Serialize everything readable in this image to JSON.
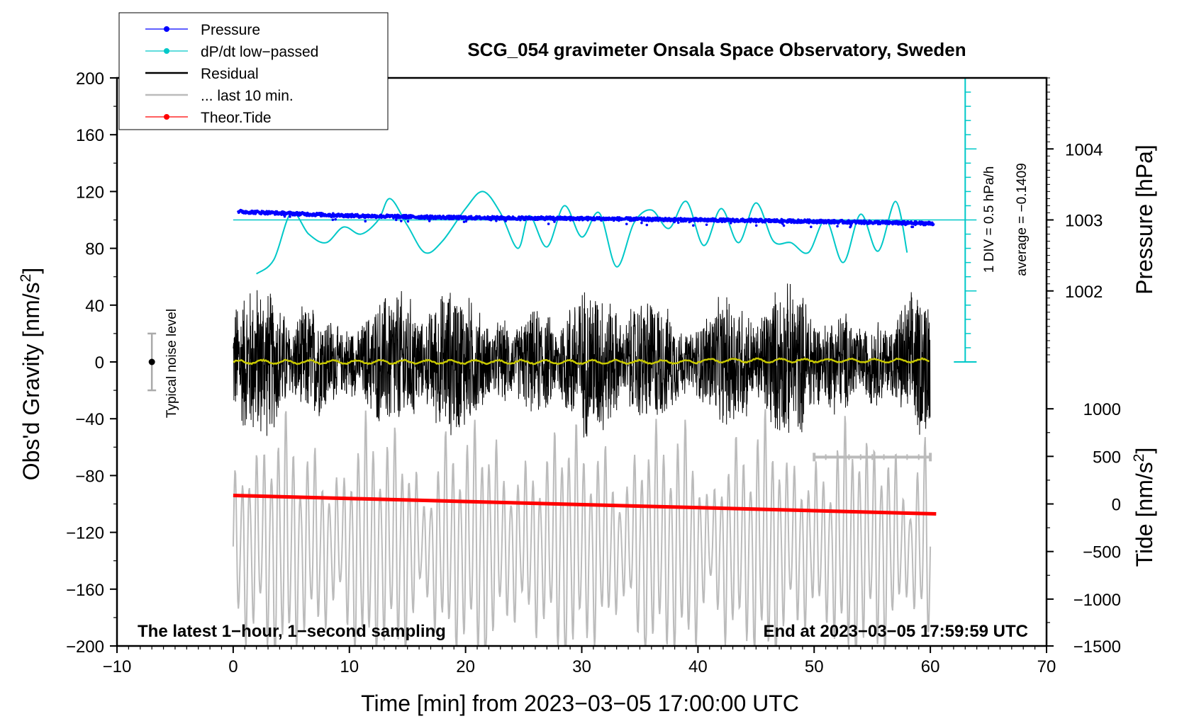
{
  "chart_data": {
    "type": "line",
    "title": "SCG_054 gravimeter Onsala Space Observatory, Sweden",
    "xlabel_prefix": "Time [min] from 2023",
    "xlabel_date_parts": [
      "03",
      "05"
    ],
    "xlabel_time": "17:00:00 UTC",
    "ylabel": "Obs'd Gravity [nm/s",
    "ylabel_unit_exp": "2",
    "ylabel_close": "]",
    "y2label_pressure": "Pressure [hPa]",
    "y2label_tide": "Tide [nm/s",
    "y2label_tide_exp": "2",
    "y2label_tide_close": "]",
    "xlim": [
      -10,
      70
    ],
    "ylim": [
      -200,
      200
    ],
    "x_ticks": [
      -10,
      0,
      10,
      20,
      30,
      40,
      50,
      60,
      70
    ],
    "x_tick_labels": [
      "−10",
      "0",
      "10",
      "20",
      "30",
      "40",
      "50",
      "60",
      "70"
    ],
    "y_ticks": [
      200,
      160,
      120,
      80,
      40,
      0,
      -40,
      -80,
      -120,
      -160,
      -200
    ],
    "y_tick_labels": [
      "200",
      "160",
      "120",
      "80",
      "40",
      "0",
      "−40",
      "−80",
      "−120",
      "−160",
      "−200"
    ],
    "pressure_axis": {
      "ticks": [
        1004,
        1003,
        1002
      ],
      "tick_labels": [
        "1004",
        "1003",
        "1002"
      ],
      "gravity_equiv": [
        150,
        100,
        50
      ]
    },
    "tide_axis": {
      "ticks": [
        1000,
        500,
        0,
        -500,
        -1000,
        -1500
      ],
      "tick_labels": [
        "1000",
        "500",
        "0",
        "−500",
        "−1000",
        "−1500"
      ],
      "gravity_equiv": [
        -33,
        -66.5,
        -100,
        -133.5,
        -167,
        -200
      ]
    },
    "legend": [
      {
        "label": "Pressure",
        "color": "#0000ff",
        "marker": true
      },
      {
        "label": "dP/dt low−passed",
        "color": "#00c8c8",
        "marker": true
      },
      {
        "label": "Residual",
        "color": "#000000",
        "marker": false
      },
      {
        "label": "... last 10 min.",
        "color": "#bbbbbb",
        "marker": false
      },
      {
        "label": "Theor.Tide",
        "color": "#ff0000",
        "marker": true
      }
    ],
    "series": [
      {
        "name": "Pressure",
        "x": [
          0,
          10,
          20,
          30,
          40,
          50,
          60
        ],
        "y_gravity": [
          106,
          103,
          101.5,
          101,
          100,
          99,
          97.5
        ]
      },
      {
        "name": "dP/dt low-passed",
        "x": [
          2,
          3.5,
          5,
          6.5,
          8,
          9.5,
          11,
          12.5,
          13.5,
          15,
          16.5,
          18,
          20,
          21.5,
          23,
          24.5,
          25.5,
          27,
          28.5,
          30,
          31.5,
          33,
          34.5,
          36,
          37.5,
          39,
          40.5,
          42,
          43.5,
          45,
          46.5,
          48,
          49.5,
          51,
          52.5,
          54,
          55.5,
          57,
          58
        ],
        "y": [
          62,
          72,
          105,
          90,
          84,
          95,
          90,
          100,
          115,
          96,
          77,
          85,
          108,
          120,
          105,
          80,
          103,
          81,
          110,
          88,
          105,
          67,
          98,
          107,
          94,
          113,
          82,
          108,
          84,
          112,
          85,
          84,
          77,
          100,
          70,
          104,
          78,
          113,
          77
        ]
      },
      {
        "name": "Residual",
        "x_range": [
          0,
          60
        ],
        "envelope": 60
      },
      {
        "name": "Residual smoothed",
        "color": "#c8c800",
        "x_range": [
          0,
          60
        ],
        "y": 0
      },
      {
        "name": "Theor.Tide",
        "x": [
          0,
          60.5
        ],
        "y_gravity": [
          -94,
          -107
        ]
      },
      {
        "name": "... last 10 min.",
        "x_range": [
          0,
          60
        ],
        "y_center": -130
      }
    ],
    "annotations": {
      "noise_label": "Typical noise level",
      "noise_bar": {
        "x": -7,
        "y": 0,
        "y_low": -20,
        "y_high": 20
      },
      "div_label": "1 DIV = 0.5 hPa/h",
      "average_label": "average = −0.1409",
      "bottom_left": "The latest 1−hour, 1−second sampling",
      "bottom_right": "End at 2023−03−05 17:59:59 UTC",
      "last10_range": [
        50,
        60
      ]
    }
  }
}
